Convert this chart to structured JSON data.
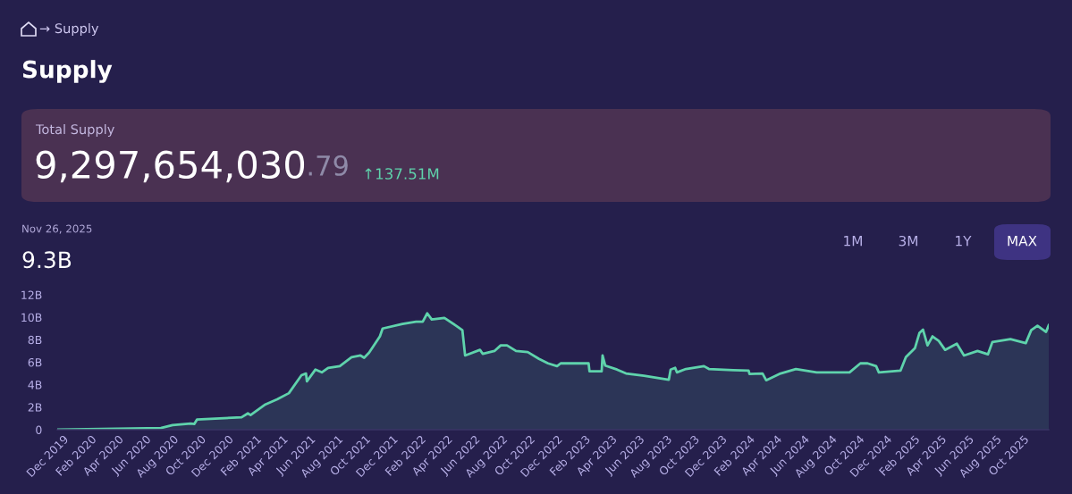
{
  "chart_data": {
    "type": "area",
    "title": "Supply",
    "annotations": [
      "→ Supply",
      "Total Supply",
      "9,297,654,030",
      ".79",
      "↑137.51M",
      "Nov 26, 2025",
      "9.3B",
      "1M",
      "3M",
      "1Y",
      "MAX"
    ],
    "series": [
      {
        "color": "#5fd3ac",
        "x": [
          "2019-11-18",
          "2020-07-05",
          "2020-07-31",
          "2020-09-09",
          "2020-09-17",
          "2020-09-23",
          "2020-12-31",
          "2021-01-14",
          "2021-01-20",
          "2021-02-22",
          "2021-03-20",
          "2021-04-15",
          "2021-05-13",
          "2021-05-23",
          "2021-05-25",
          "2021-06-13",
          "2021-06-27",
          "2021-07-11",
          "2021-08-06",
          "2021-09-01",
          "2021-09-21",
          "2021-09-29",
          "2021-10-10",
          "2021-11-03",
          "2021-11-09",
          "2021-12-23",
          "2022-01-22",
          "2022-02-06",
          "2022-02-16",
          "2022-02-26",
          "2022-03-26",
          "2022-04-21",
          "2022-05-05",
          "2022-05-11",
          "2022-06-13",
          "2022-06-19",
          "2022-07-15",
          "2022-07-29",
          "2022-08-12",
          "2022-09-01",
          "2022-09-27",
          "2022-10-22",
          "2022-11-11",
          "2022-12-01",
          "2022-12-09",
          "2023-02-09",
          "2023-02-11",
          "2023-03-10",
          "2023-03-12",
          "2023-03-18",
          "2023-04-13",
          "2023-05-03",
          "2023-06-12",
          "2023-08-06",
          "2023-08-10",
          "2023-08-20",
          "2023-08-24",
          "2023-09-13",
          "2023-10-23",
          "2023-11-03",
          "2023-12-27",
          "2024-01-30",
          "2024-02-01",
          "2024-03-01",
          "2024-03-09",
          "2024-04-10",
          "2024-05-14",
          "2024-06-29",
          "2024-09-10",
          "2024-10-04",
          "2024-10-20",
          "2024-11-08",
          "2024-11-14",
          "2025-01-01",
          "2025-01-13",
          "2025-02-02",
          "2025-02-12",
          "2025-02-20",
          "2025-03-02",
          "2025-03-13",
          "2025-03-27",
          "2025-04-10",
          "2025-05-06",
          "2025-05-22",
          "2025-06-21",
          "2025-07-14",
          "2025-07-24",
          "2025-09-02",
          "2025-10-06",
          "2025-10-18",
          "2025-11-01",
          "2025-11-20",
          "2025-11-26"
        ],
        "values": [
          0.0,
          0.15,
          0.4,
          0.55,
          0.5,
          0.9,
          1.1,
          1.45,
          1.3,
          2.25,
          2.7,
          3.25,
          4.85,
          5.0,
          4.3,
          5.35,
          5.1,
          5.5,
          5.65,
          6.45,
          6.6,
          6.4,
          6.85,
          8.3,
          9.0,
          9.4,
          9.6,
          9.6,
          10.35,
          9.8,
          9.95,
          9.25,
          8.85,
          6.6,
          7.1,
          6.75,
          7.0,
          7.5,
          7.5,
          7.0,
          6.9,
          6.3,
          5.9,
          5.65,
          5.9,
          5.9,
          5.2,
          5.2,
          6.6,
          5.7,
          5.35,
          5.0,
          4.8,
          4.45,
          5.35,
          5.5,
          5.1,
          5.4,
          5.65,
          5.4,
          5.3,
          5.25,
          4.95,
          5.0,
          4.4,
          5.0,
          5.4,
          5.1,
          5.1,
          5.9,
          5.9,
          5.65,
          5.1,
          5.25,
          6.45,
          7.25,
          8.6,
          8.9,
          7.5,
          8.3,
          7.9,
          7.1,
          7.65,
          6.6,
          7.0,
          6.7,
          7.8,
          8.05,
          7.7,
          8.85,
          9.25,
          8.7,
          9.3
        ]
      }
    ],
    "xticks": [
      {
        "value": "2019-12-01",
        "label": "Dec 2019"
      },
      {
        "value": "2020-02-01",
        "label": "Feb 2020"
      },
      {
        "value": "2020-04-01",
        "label": "Apr 2020"
      },
      {
        "value": "2020-06-01",
        "label": "Jun 2020"
      },
      {
        "value": "2020-08-01",
        "label": "Aug 2020"
      },
      {
        "value": "2020-10-01",
        "label": "Oct 2020"
      },
      {
        "value": "2020-12-01",
        "label": "Dec 2020"
      },
      {
        "value": "2021-02-01",
        "label": "Feb 2021"
      },
      {
        "value": "2021-04-01",
        "label": "Apr 2021"
      },
      {
        "value": "2021-06-01",
        "label": "Jun 2021"
      },
      {
        "value": "2021-08-01",
        "label": "Aug 2021"
      },
      {
        "value": "2021-10-01",
        "label": "Oct 2021"
      },
      {
        "value": "2021-12-01",
        "label": "Dec 2021"
      },
      {
        "value": "2022-02-01",
        "label": "Feb 2022"
      },
      {
        "value": "2022-04-01",
        "label": "Apr 2022"
      },
      {
        "value": "2022-06-01",
        "label": "Jun 2022"
      },
      {
        "value": "2022-08-01",
        "label": "Aug 2022"
      },
      {
        "value": "2022-10-01",
        "label": "Oct 2022"
      },
      {
        "value": "2022-12-01",
        "label": "Dec 2022"
      },
      {
        "value": "2023-02-01",
        "label": "Feb 2023"
      },
      {
        "value": "2023-04-01",
        "label": "Apr 2023"
      },
      {
        "value": "2023-06-01",
        "label": "Jun 2023"
      },
      {
        "value": "2023-08-01",
        "label": "Aug 2023"
      },
      {
        "value": "2023-10-01",
        "label": "Oct 2023"
      },
      {
        "value": "2023-12-01",
        "label": "Dec 2023"
      },
      {
        "value": "2024-02-01",
        "label": "Feb 2024"
      },
      {
        "value": "2024-04-01",
        "label": "Apr 2024"
      },
      {
        "value": "2024-06-01",
        "label": "Jun 2024"
      },
      {
        "value": "2024-08-01",
        "label": "Aug 2024"
      },
      {
        "value": "2024-10-01",
        "label": "Oct 2024"
      },
      {
        "value": "2024-12-01",
        "label": "Dec 2024"
      },
      {
        "value": "2025-02-01",
        "label": "Feb 2025"
      },
      {
        "value": "2025-04-01",
        "label": "Apr 2025"
      },
      {
        "value": "2025-06-01",
        "label": "Jun 2025"
      },
      {
        "value": "2025-08-01",
        "label": "Aug 2025"
      },
      {
        "value": "2025-10-01",
        "label": "Oct 2025"
      }
    ],
    "xlim": [
      "2019-11-18",
      "2025-11-26"
    ],
    "ylim": [
      0,
      12
    ],
    "yticks": [
      {
        "value": 0,
        "label": "0"
      },
      {
        "value": 2,
        "label": "2B"
      },
      {
        "value": 4,
        "label": "4B"
      },
      {
        "value": 6,
        "label": "6B"
      },
      {
        "value": 8,
        "label": "8B"
      },
      {
        "value": 10,
        "label": "10B"
      },
      {
        "value": 12,
        "label": "12B"
      }
    ],
    "grid": false,
    "legend": false
  }
}
